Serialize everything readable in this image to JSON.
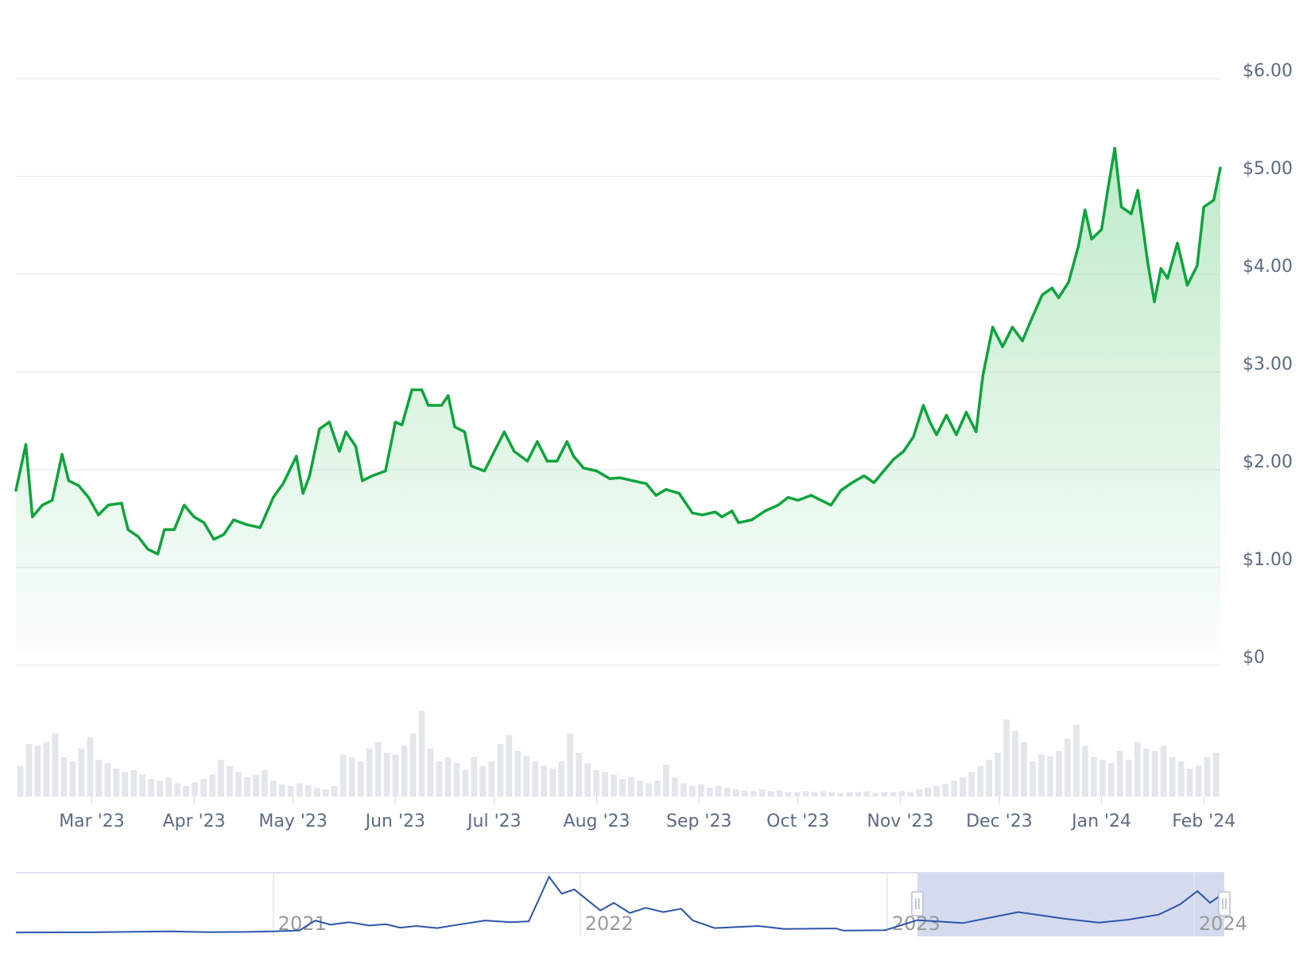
{
  "colors": {
    "price_line": "#0ea43c",
    "price_fill_top": "#a8e3b7",
    "grid": "#e9ecef",
    "axis_text": "#5b6b85",
    "volume_bar": "#e3e6ea",
    "navigator_line": "#2c55a8",
    "navigator_selection": "#d4dbee",
    "navigator_text": "#9a9a9a"
  },
  "chart_data": {
    "type": "area",
    "grid": true,
    "legend": "none",
    "y_axis": {
      "position": "right",
      "ylim": [
        0,
        6
      ],
      "ticks": [
        0,
        1,
        2,
        3,
        4,
        5,
        6
      ],
      "tick_labels": [
        "$0",
        "$1.00",
        "$2.00",
        "$3.00",
        "$4.00",
        "$5.00",
        "$6.00"
      ]
    },
    "x_axis": {
      "range": [
        "2023-02-06",
        "2024-02-06"
      ],
      "ticks": [
        "2023-03-01",
        "2023-04-01",
        "2023-05-01",
        "2023-06-01",
        "2023-07-01",
        "2023-08-01",
        "2023-09-01",
        "2023-10-01",
        "2023-11-01",
        "2023-12-01",
        "2024-01-01",
        "2024-02-01"
      ],
      "tick_labels": [
        "Mar '23",
        "Apr '23",
        "May '23",
        "Jun '23",
        "Jul '23",
        "Aug '23",
        "Sep '23",
        "Oct '23",
        "Nov '23",
        "Dec '23",
        "Jan '24",
        "Feb '24"
      ]
    },
    "series": [
      {
        "type": "line",
        "points": [
          [
            "2023-02-06",
            1.65
          ],
          [
            "2023-02-09",
            2.12
          ],
          [
            "2023-02-11",
            1.38
          ],
          [
            "2023-02-14",
            1.5
          ],
          [
            "2023-02-17",
            1.55
          ],
          [
            "2023-02-20",
            2.02
          ],
          [
            "2023-02-22",
            1.75
          ],
          [
            "2023-02-25",
            1.7
          ],
          [
            "2023-02-28",
            1.58
          ],
          [
            "2023-03-03",
            1.4
          ],
          [
            "2023-03-06",
            1.5
          ],
          [
            "2023-03-10",
            1.52
          ],
          [
            "2023-03-12",
            1.25
          ],
          [
            "2023-03-15",
            1.18
          ],
          [
            "2023-03-18",
            1.05
          ],
          [
            "2023-03-21",
            1.0
          ],
          [
            "2023-03-23",
            1.25
          ],
          [
            "2023-03-26",
            1.25
          ],
          [
            "2023-03-29",
            1.5
          ],
          [
            "2023-04-01",
            1.38
          ],
          [
            "2023-04-04",
            1.32
          ],
          [
            "2023-04-07",
            1.15
          ],
          [
            "2023-04-10",
            1.2
          ],
          [
            "2023-04-13",
            1.35
          ],
          [
            "2023-04-17",
            1.3
          ],
          [
            "2023-04-21",
            1.27
          ],
          [
            "2023-04-25",
            1.58
          ],
          [
            "2023-04-28",
            1.72
          ],
          [
            "2023-05-02",
            2.0
          ],
          [
            "2023-05-04",
            1.62
          ],
          [
            "2023-05-06",
            1.8
          ],
          [
            "2023-05-09",
            2.28
          ],
          [
            "2023-05-12",
            2.35
          ],
          [
            "2023-05-15",
            2.05
          ],
          [
            "2023-05-17",
            2.25
          ],
          [
            "2023-05-20",
            2.1
          ],
          [
            "2023-05-22",
            1.75
          ],
          [
            "2023-05-25",
            1.8
          ],
          [
            "2023-05-29",
            1.85
          ],
          [
            "2023-06-01",
            2.35
          ],
          [
            "2023-06-03",
            2.32
          ],
          [
            "2023-06-06",
            2.68
          ],
          [
            "2023-06-09",
            2.68
          ],
          [
            "2023-06-11",
            2.52
          ],
          [
            "2023-06-15",
            2.52
          ],
          [
            "2023-06-17",
            2.62
          ],
          [
            "2023-06-19",
            2.3
          ],
          [
            "2023-06-22",
            2.25
          ],
          [
            "2023-06-24",
            1.9
          ],
          [
            "2023-06-28",
            1.85
          ],
          [
            "2023-07-01",
            2.05
          ],
          [
            "2023-07-04",
            2.25
          ],
          [
            "2023-07-07",
            2.05
          ],
          [
            "2023-07-11",
            1.95
          ],
          [
            "2023-07-14",
            2.15
          ],
          [
            "2023-07-17",
            1.95
          ],
          [
            "2023-07-20",
            1.95
          ],
          [
            "2023-07-23",
            2.15
          ],
          [
            "2023-07-25",
            2.0
          ],
          [
            "2023-07-28",
            1.88
          ],
          [
            "2023-08-01",
            1.85
          ],
          [
            "2023-08-05",
            1.77
          ],
          [
            "2023-08-08",
            1.78
          ],
          [
            "2023-08-12",
            1.75
          ],
          [
            "2023-08-16",
            1.72
          ],
          [
            "2023-08-19",
            1.6
          ],
          [
            "2023-08-22",
            1.66
          ],
          [
            "2023-08-26",
            1.62
          ],
          [
            "2023-08-30",
            1.42
          ],
          [
            "2023-09-02",
            1.4
          ],
          [
            "2023-09-06",
            1.43
          ],
          [
            "2023-09-08",
            1.38
          ],
          [
            "2023-09-11",
            1.44
          ],
          [
            "2023-09-13",
            1.32
          ],
          [
            "2023-09-17",
            1.35
          ],
          [
            "2023-09-21",
            1.44
          ],
          [
            "2023-09-25",
            1.5
          ],
          [
            "2023-09-28",
            1.58
          ],
          [
            "2023-10-01",
            1.55
          ],
          [
            "2023-10-05",
            1.6
          ],
          [
            "2023-10-08",
            1.55
          ],
          [
            "2023-10-11",
            1.5
          ],
          [
            "2023-10-14",
            1.65
          ],
          [
            "2023-10-17",
            1.72
          ],
          [
            "2023-10-21",
            1.8
          ],
          [
            "2023-10-24",
            1.73
          ],
          [
            "2023-10-27",
            1.85
          ],
          [
            "2023-10-30",
            1.97
          ],
          [
            "2023-11-02",
            2.05
          ],
          [
            "2023-11-05",
            2.2
          ],
          [
            "2023-11-08",
            2.52
          ],
          [
            "2023-11-10",
            2.35
          ],
          [
            "2023-11-12",
            2.22
          ],
          [
            "2023-11-15",
            2.42
          ],
          [
            "2023-11-18",
            2.22
          ],
          [
            "2023-11-21",
            2.45
          ],
          [
            "2023-11-24",
            2.25
          ],
          [
            "2023-11-26",
            2.82
          ],
          [
            "2023-11-29",
            3.32
          ],
          [
            "2023-12-02",
            3.12
          ],
          [
            "2023-12-05",
            3.32
          ],
          [
            "2023-12-08",
            3.18
          ],
          [
            "2023-12-11",
            3.42
          ],
          [
            "2023-12-14",
            3.65
          ],
          [
            "2023-12-17",
            3.72
          ],
          [
            "2023-12-19",
            3.62
          ],
          [
            "2023-12-22",
            3.78
          ],
          [
            "2023-12-25",
            4.15
          ],
          [
            "2023-12-27",
            4.52
          ],
          [
            "2023-12-29",
            4.22
          ],
          [
            "2024-01-01",
            4.32
          ],
          [
            "2024-01-03",
            4.75
          ],
          [
            "2024-01-05",
            5.15
          ],
          [
            "2024-01-07",
            4.55
          ],
          [
            "2024-01-10",
            4.48
          ],
          [
            "2024-01-12",
            4.72
          ],
          [
            "2024-01-15",
            3.98
          ],
          [
            "2024-01-17",
            3.58
          ],
          [
            "2024-01-19",
            3.92
          ],
          [
            "2024-01-21",
            3.82
          ],
          [
            "2024-01-24",
            4.18
          ],
          [
            "2024-01-27",
            3.75
          ],
          [
            "2024-01-30",
            3.95
          ],
          [
            "2024-02-01",
            4.55
          ],
          [
            "2024-02-04",
            4.62
          ],
          [
            "2024-02-06",
            4.95
          ]
        ]
      },
      {
        "type": "bar",
        "relative_values": [
          0.35,
          0.6,
          0.58,
          0.62,
          0.72,
          0.45,
          0.4,
          0.55,
          0.68,
          0.42,
          0.38,
          0.32,
          0.28,
          0.3,
          0.25,
          0.2,
          0.18,
          0.22,
          0.15,
          0.12,
          0.16,
          0.2,
          0.25,
          0.42,
          0.35,
          0.28,
          0.22,
          0.25,
          0.3,
          0.18,
          0.14,
          0.12,
          0.15,
          0.13,
          0.1,
          0.08,
          0.12,
          0.48,
          0.45,
          0.4,
          0.55,
          0.62,
          0.5,
          0.48,
          0.58,
          0.72,
          0.98,
          0.55,
          0.4,
          0.45,
          0.38,
          0.3,
          0.45,
          0.35,
          0.4,
          0.6,
          0.7,
          0.52,
          0.46,
          0.4,
          0.35,
          0.32,
          0.4,
          0.72,
          0.5,
          0.38,
          0.3,
          0.28,
          0.25,
          0.2,
          0.22,
          0.18,
          0.15,
          0.18,
          0.36,
          0.22,
          0.15,
          0.12,
          0.14,
          0.1,
          0.12,
          0.1,
          0.08,
          0.07,
          0.06,
          0.08,
          0.06,
          0.07,
          0.05,
          0.05,
          0.06,
          0.05,
          0.06,
          0.05,
          0.04,
          0.05,
          0.05,
          0.06,
          0.04,
          0.05,
          0.05,
          0.06,
          0.05,
          0.08,
          0.1,
          0.12,
          0.14,
          0.18,
          0.22,
          0.28,
          0.35,
          0.42,
          0.5,
          0.88,
          0.75,
          0.62,
          0.4,
          0.48,
          0.46,
          0.52,
          0.66,
          0.82,
          0.58,
          0.45,
          0.42,
          0.38,
          0.52,
          0.42,
          0.62,
          0.55,
          0.52,
          0.58,
          0.45,
          0.4,
          0.32,
          0.35,
          0.45,
          0.5
        ]
      }
    ],
    "navigator": {
      "x_range": [
        "2020-03-01",
        "2024-02-06"
      ],
      "tick_labels": [
        "2021",
        "2022",
        "2023",
        "2024"
      ],
      "selection": [
        "2023-02-06",
        "2024-02-06"
      ],
      "points": [
        [
          "2020-03-01",
          0.18
        ],
        [
          "2020-06-01",
          0.2
        ],
        [
          "2020-09-01",
          0.3
        ],
        [
          "2020-10-15",
          0.22
        ],
        [
          "2020-12-01",
          0.25
        ],
        [
          "2021-01-01",
          0.3
        ],
        [
          "2021-02-01",
          0.42
        ],
        [
          "2021-02-20",
          1.6
        ],
        [
          "2021-03-10",
          1.1
        ],
        [
          "2021-04-01",
          1.4
        ],
        [
          "2021-04-25",
          1.0
        ],
        [
          "2021-05-15",
          1.15
        ],
        [
          "2021-06-01",
          0.75
        ],
        [
          "2021-06-20",
          0.95
        ],
        [
          "2021-07-15",
          0.7
        ],
        [
          "2021-08-15",
          1.2
        ],
        [
          "2021-09-10",
          1.6
        ],
        [
          "2021-10-10",
          1.4
        ],
        [
          "2021-11-01",
          1.5
        ],
        [
          "2021-11-25",
          6.8
        ],
        [
          "2021-12-10",
          4.8
        ],
        [
          "2021-12-25",
          5.3
        ],
        [
          "2022-01-10",
          4.0
        ],
        [
          "2022-01-25",
          2.8
        ],
        [
          "2022-02-10",
          3.7
        ],
        [
          "2022-03-01",
          2.5
        ],
        [
          "2022-03-20",
          3.1
        ],
        [
          "2022-04-10",
          2.6
        ],
        [
          "2022-05-01",
          3.0
        ],
        [
          "2022-05-15",
          1.6
        ],
        [
          "2022-06-10",
          0.7
        ],
        [
          "2022-08-01",
          0.95
        ],
        [
          "2022-09-01",
          0.6
        ],
        [
          "2022-11-01",
          0.65
        ],
        [
          "2022-11-10",
          0.4
        ],
        [
          "2022-12-30",
          0.45
        ],
        [
          "2023-02-06",
          1.65
        ],
        [
          "2023-04-01",
          1.3
        ],
        [
          "2023-06-06",
          2.6
        ],
        [
          "2023-08-01",
          1.8
        ],
        [
          "2023-09-10",
          1.35
        ],
        [
          "2023-10-15",
          1.7
        ],
        [
          "2023-11-20",
          2.3
        ],
        [
          "2023-12-15",
          3.5
        ],
        [
          "2024-01-05",
          5.1
        ],
        [
          "2024-01-20",
          3.7
        ],
        [
          "2024-02-06",
          4.9
        ]
      ]
    }
  }
}
